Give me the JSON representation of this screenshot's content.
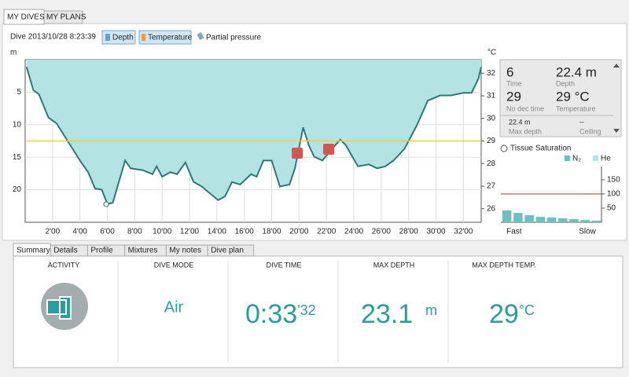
{
  "tabs": [
    "MY DIVES",
    "MY PLANS"
  ],
  "dive_label": "Dive 2013/10/28 8:23:39",
  "toggles": [
    "Depth",
    "Temperature",
    "Partial pressure"
  ],
  "chart_data": [
    {
      "type": "area",
      "y_label": "m",
      "y2_label": "°C",
      "y_inverted": true,
      "grid": true,
      "x": [
        0.1,
        0.6,
        1.0,
        1.7,
        2.3,
        3.1,
        4.0,
        4.6,
        5.1,
        5.6,
        6.0,
        6.4,
        6.7,
        7.3,
        7.7,
        8.6,
        9.3,
        9.6,
        10.0,
        10.6,
        11.1,
        11.7,
        12.3,
        12.9,
        13.4,
        14.1,
        14.6,
        15.1,
        15.7,
        16.5,
        16.9,
        17.4,
        18.0,
        18.6,
        19.3,
        19.7,
        20.3,
        20.7,
        21.1,
        21.7,
        22.3,
        23.0,
        23.4,
        24.3,
        25.1,
        25.7,
        26.3,
        26.9,
        27.7,
        28.6,
        29.4,
        30.3,
        31.1,
        32.0,
        32.6,
        33.1,
        33.3
      ],
      "series": [
        {
          "name": "Depth",
          "color": "#2b7a78",
          "fill": "#b4e3e3",
          "values": [
            1.1,
            4.7,
            5.3,
            8.9,
            9.8,
            12.5,
            15.5,
            17.3,
            19.8,
            20.0,
            22.2,
            22.0,
            19.8,
            15.5,
            16.7,
            17.0,
            17.6,
            16.4,
            18.0,
            17.3,
            17.6,
            15.8,
            18.8,
            19.5,
            20.4,
            21.6,
            21.0,
            18.8,
            19.2,
            17.6,
            18.0,
            15.5,
            15.5,
            19.5,
            19.2,
            16.7,
            10.4,
            13.1,
            14.9,
            15.5,
            14.0,
            12.3,
            13.1,
            16.4,
            16.1,
            16.7,
            16.4,
            15.5,
            13.7,
            10.1,
            6.3,
            5.5,
            5.5,
            5.1,
            5.1,
            2.9,
            1.1
          ]
        },
        {
          "name": "Temperature",
          "color": "#e8d23a",
          "axis": "y2",
          "values": [
            29,
            29,
            29,
            29,
            29,
            29,
            29,
            29,
            29,
            29,
            29,
            29,
            29,
            29,
            29,
            29,
            29,
            29,
            29,
            29,
            29,
            29,
            29,
            29,
            29,
            29,
            29,
            29,
            29,
            29,
            29,
            29,
            29,
            29,
            29,
            29,
            29,
            29,
            29,
            29,
            29,
            29,
            29,
            29,
            29,
            29,
            29,
            29,
            29,
            29,
            29,
            29,
            29,
            29,
            29,
            29,
            29
          ]
        }
      ],
      "xlim": [
        0,
        33.3
      ],
      "xticks": [
        {
          "value": 2,
          "label": "2'00"
        },
        {
          "value": 4,
          "label": "4'00"
        },
        {
          "value": 6,
          "label": "6'00"
        },
        {
          "value": 8,
          "label": "8'00"
        },
        {
          "value": 10,
          "label": "10'00"
        },
        {
          "value": 12,
          "label": "12'00"
        },
        {
          "value": 14,
          "label": "14'00"
        },
        {
          "value": 16,
          "label": "16'00"
        },
        {
          "value": 18,
          "label": "18'00"
        },
        {
          "value": 20,
          "label": "20'00"
        },
        {
          "value": 22,
          "label": "22'00"
        },
        {
          "value": 24,
          "label": "24'00"
        },
        {
          "value": 26,
          "label": "26'00"
        },
        {
          "value": 28,
          "label": "28'00"
        },
        {
          "value": 30,
          "label": "30'00"
        },
        {
          "value": 32,
          "label": "32'00"
        }
      ],
      "ylim": [
        0,
        25
      ],
      "yticks": [
        5,
        10,
        15,
        20
      ],
      "y2lim": [
        25.4,
        32.6
      ],
      "y2ticks": [
        26,
        27,
        28,
        29,
        30,
        31,
        32
      ]
    },
    {
      "type": "bar",
      "title": "Tissue Saturation",
      "categories": [
        "Fast",
        null,
        null,
        null,
        null,
        null,
        null,
        null,
        "Slow"
      ],
      "series": [
        {
          "name": "N₂",
          "color": "#6cc0c0",
          "values": [
            42,
            33,
            25,
            19,
            17,
            14,
            11,
            8,
            6
          ]
        },
        {
          "name": "He",
          "color": "#b4e3e3",
          "values": [
            0,
            0,
            0,
            0,
            0,
            0,
            0,
            0,
            0
          ]
        }
      ],
      "ylim": [
        0,
        197
      ],
      "yticks": [
        50,
        100,
        150
      ],
      "threshold": 100,
      "threshold_color": "#a0524a"
    }
  ],
  "info": {
    "time": "6",
    "time_label": "Time",
    "depth": "22.4 m",
    "depth_label": "Depth",
    "no_dec": "29",
    "no_dec_label": "No dec time",
    "temp": "29 °C",
    "temp_label": "Temperature",
    "max_depth": "22.4 m",
    "max_depth_label": "Max depth",
    "ceiling": "--",
    "ceiling_label": "Ceiling"
  },
  "bottom_tabs": [
    "Summary",
    "Details",
    "Profile",
    "Mixtures",
    "My notes",
    "Dive plan"
  ],
  "summary": {
    "activity": "ACTIVITY",
    "mode_label": "DIVE MODE",
    "mode": "Air",
    "time_label": "DIVE TIME",
    "time": "0:33",
    "time_seconds": "'32",
    "depth_label": "MAX DEPTH",
    "depth": "23.1",
    "depth_unit": "m",
    "temp_label": "MAX DEPTH TEMP.",
    "temp": "29",
    "temp_unit": "°C"
  }
}
